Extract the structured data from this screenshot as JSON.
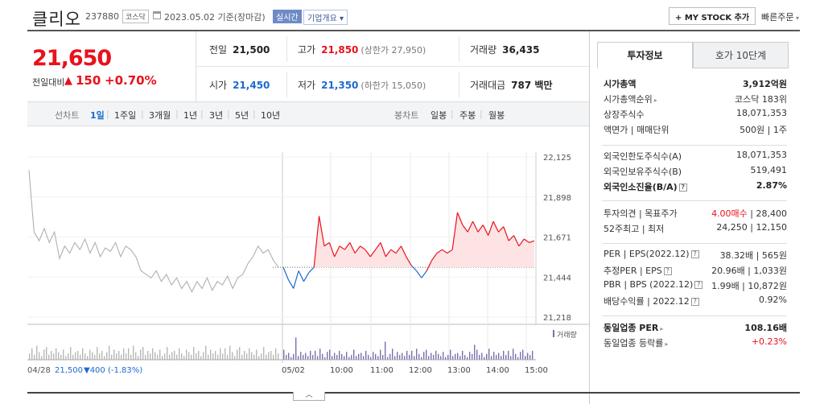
{
  "header": {
    "title": "클리오",
    "code": "237880",
    "market": "코스닥",
    "date": "2023.05.02  기준(장마감)",
    "realtime": "실시간",
    "corp_info": "기업개요 ▾",
    "mystock": "+ MY STOCK 추가",
    "quick_order": "빠른주문"
  },
  "price": {
    "current": "21,650",
    "compare_label": "전일대비",
    "arrow": "▲",
    "diff": "150",
    "pct": "+0.70%"
  },
  "quote": {
    "prev_label": "전일",
    "prev": "21,500",
    "high_label": "고가",
    "high": "21,850",
    "upper_limit": "(상한가 27,950)",
    "volume_label": "거래량",
    "volume": "36,435",
    "open_label": "시가",
    "open": "21,450",
    "low_label": "저가",
    "low": "21,350",
    "lower_limit": "(하한가 15,050)",
    "amount_label": "거래대금",
    "amount": "787 백만"
  },
  "periods": {
    "line_label": "선차트",
    "items": [
      "1일",
      "1주일",
      "3개월",
      "1년",
      "3년",
      "5년",
      "10년"
    ],
    "active": "1일",
    "candle_label": "봉차트",
    "candle_items": [
      "일봉",
      "주봉",
      "월봉"
    ]
  },
  "chart_data": {
    "type": "line",
    "price_ticks": [
      "22,125",
      "21,898",
      "21,671",
      "21,444",
      "21,218"
    ],
    "ylim": [
      21218,
      22125
    ],
    "prev_close": 21500,
    "time_labels": [
      "05/02",
      "10:00",
      "11:00",
      "12:00",
      "13:00",
      "14:00",
      "15:00"
    ],
    "prev_day_label": "04/28",
    "prev_day_close": "21,500",
    "prev_day_change": "▼400 (-1.83%)",
    "volume_label": "거래량",
    "colors": {
      "up": "#e8121d",
      "down": "#1a6ad0",
      "prev": "#b0b0b0",
      "volume": "#7b6fb0"
    },
    "prev_series": [
      22050,
      21700,
      21650,
      21720,
      21640,
      21700,
      21550,
      21620,
      21580,
      21640,
      21600,
      21660,
      21580,
      21640,
      21560,
      21610,
      21590,
      21640,
      21560,
      21620,
      21600,
      21560,
      21480,
      21460,
      21440,
      21480,
      21420,
      21460,
      21400,
      21440,
      21380,
      21420,
      21360,
      21420,
      21380,
      21440,
      21370,
      21420,
      21400,
      21450,
      21380,
      21440,
      21460,
      21520,
      21560,
      21620,
      21580,
      21600,
      21540,
      21500
    ],
    "today_series": [
      21500,
      21430,
      21380,
      21480,
      21420,
      21470,
      21500,
      21790,
      21620,
      21640,
      21560,
      21620,
      21600,
      21640,
      21580,
      21620,
      21600,
      21560,
      21600,
      21640,
      21560,
      21600,
      21580,
      21620,
      21560,
      21510,
      21480,
      21440,
      21480,
      21540,
      21580,
      21600,
      21580,
      21600,
      21810,
      21740,
      21700,
      21760,
      21700,
      21740,
      21680,
      21760,
      21700,
      21730,
      21650,
      21680,
      21620,
      21660,
      21640,
      21650
    ]
  },
  "sidebar": {
    "tab_invest": "투자정보",
    "tab_orderbook": "호가 10단계",
    "rows1": [
      {
        "k": "시가총액",
        "v": "3,912억원",
        "kb": true,
        "vb": true
      },
      {
        "k": "시가총액순위",
        "v": "코스닥 183위",
        "arrow": true
      },
      {
        "k": "상장주식수",
        "v": "18,071,353"
      },
      {
        "k": "액면가 | 매매단위",
        "v": "500원 | 1주"
      }
    ],
    "rows2": [
      {
        "k": "외국인한도주식수(A)",
        "v": "18,071,353"
      },
      {
        "k": "외국인보유주식수(B)",
        "v": "519,491"
      },
      {
        "k": "외국인소진율(B/A)",
        "v": "2.87%",
        "kb": true,
        "vb": true,
        "q": true
      }
    ],
    "rows3": [
      {
        "k": "투자의견 | 목표주가",
        "v_red": "4.00매수",
        "v": "28,400"
      },
      {
        "k": "52주최고 | 최저",
        "v": "24,250 | 12,150"
      }
    ],
    "rows4": [
      {
        "k": "PER | EPS(2022.12)",
        "v": "38.32배 | 565원",
        "q": true
      },
      {
        "k": "추정PER | EPS",
        "v": "20.96배 | 1,033원",
        "q": true
      },
      {
        "k": "PBR | BPS (2022.12)",
        "v": "1.99배 | 10,872원",
        "q": true
      },
      {
        "k": "배당수익률 | 2022.12",
        "v": "0.92%",
        "q": true
      }
    ],
    "rows5": [
      {
        "k": "동일업종 PER",
        "v": "108.16배",
        "kb": true,
        "vb": true,
        "arrow": true
      },
      {
        "k": "동일업종 등락률",
        "v_red_only": "+0.23%",
        "arrow": true
      }
    ]
  }
}
